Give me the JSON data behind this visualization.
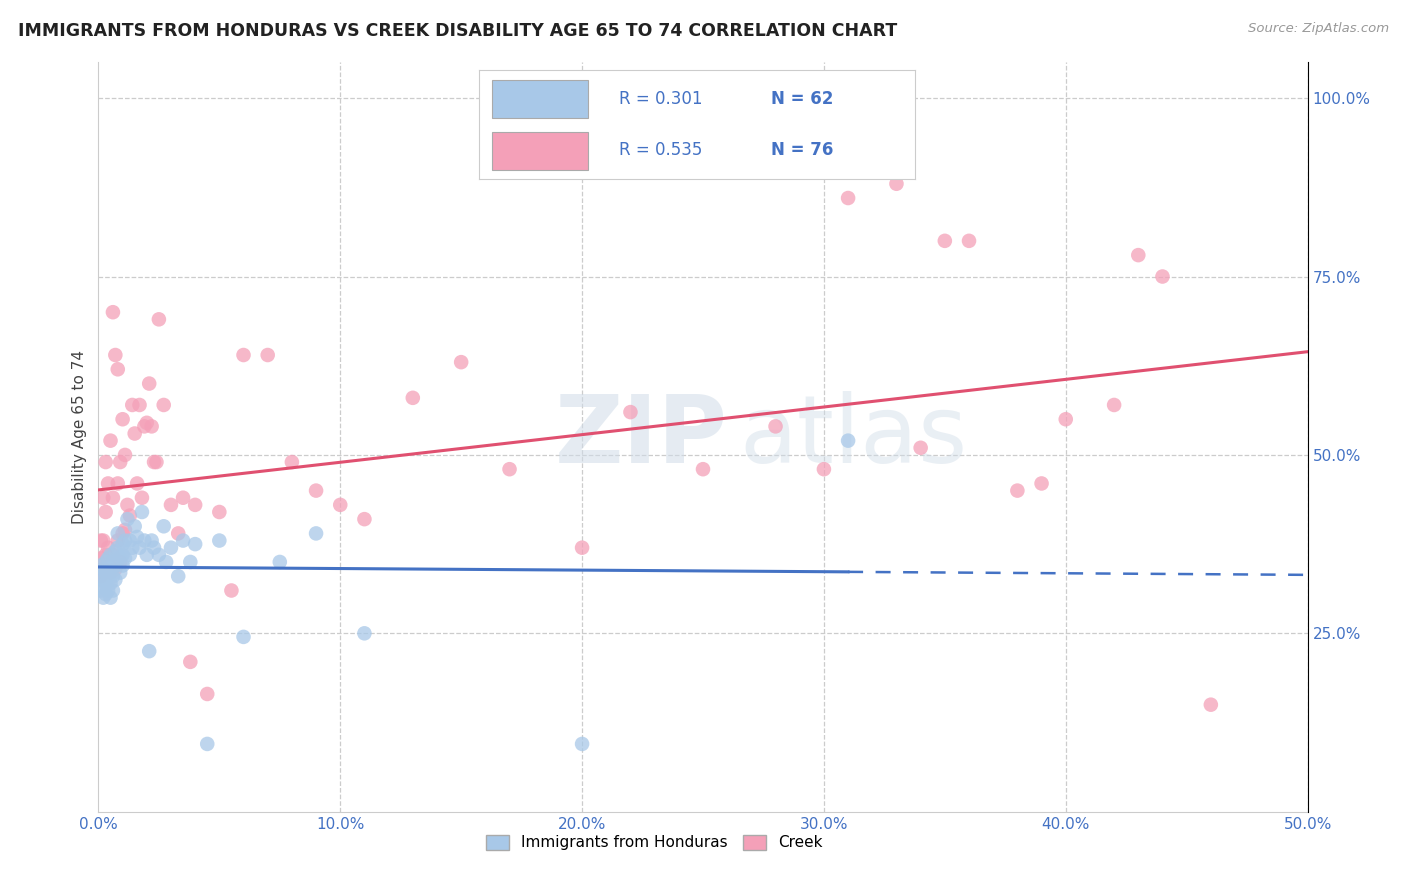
{
  "title": "IMMIGRANTS FROM HONDURAS VS CREEK DISABILITY AGE 65 TO 74 CORRELATION CHART",
  "source_text": "Source: ZipAtlas.com",
  "ylabel": "Disability Age 65 to 74",
  "xmin": 0.0,
  "xmax": 0.5,
  "ymin": 0.0,
  "ymax": 1.05,
  "xtick_vals": [
    0.0,
    0.1,
    0.2,
    0.3,
    0.4,
    0.5
  ],
  "xticklabels": [
    "0.0%",
    "10.0%",
    "20.0%",
    "30.0%",
    "40.0%",
    "50.0%"
  ],
  "ytick_vals": [
    0.25,
    0.5,
    0.75,
    1.0
  ],
  "yticklabels": [
    "25.0%",
    "50.0%",
    "75.0%",
    "100.0%"
  ],
  "r1": "0.301",
  "n1": "62",
  "r2": "0.535",
  "n2": "76",
  "series1_color": "#a8c8e8",
  "series2_color": "#f4a0b8",
  "line1_color": "#4472c4",
  "line2_color": "#e05070",
  "watermark_zip": "ZIP",
  "watermark_atlas": "atlas",
  "legend_label1": "Immigrants from Honduras",
  "legend_label2": "Creek",
  "blue_x": [
    0.001,
    0.001,
    0.001,
    0.002,
    0.002,
    0.002,
    0.002,
    0.003,
    0.003,
    0.003,
    0.003,
    0.004,
    0.004,
    0.004,
    0.005,
    0.005,
    0.005,
    0.005,
    0.006,
    0.006,
    0.006,
    0.007,
    0.007,
    0.007,
    0.008,
    0.008,
    0.009,
    0.009,
    0.01,
    0.01,
    0.01,
    0.011,
    0.011,
    0.012,
    0.013,
    0.013,
    0.014,
    0.015,
    0.016,
    0.017,
    0.018,
    0.019,
    0.02,
    0.021,
    0.022,
    0.023,
    0.025,
    0.027,
    0.028,
    0.03,
    0.033,
    0.035,
    0.038,
    0.04,
    0.045,
    0.05,
    0.06,
    0.075,
    0.09,
    0.11,
    0.2,
    0.31
  ],
  "blue_y": [
    0.31,
    0.33,
    0.345,
    0.3,
    0.315,
    0.325,
    0.34,
    0.305,
    0.32,
    0.335,
    0.35,
    0.31,
    0.33,
    0.355,
    0.3,
    0.32,
    0.34,
    0.36,
    0.31,
    0.33,
    0.35,
    0.325,
    0.345,
    0.365,
    0.37,
    0.39,
    0.335,
    0.355,
    0.345,
    0.36,
    0.375,
    0.355,
    0.38,
    0.41,
    0.36,
    0.38,
    0.37,
    0.4,
    0.385,
    0.37,
    0.42,
    0.38,
    0.36,
    0.225,
    0.38,
    0.37,
    0.36,
    0.4,
    0.35,
    0.37,
    0.33,
    0.38,
    0.35,
    0.375,
    0.095,
    0.38,
    0.245,
    0.35,
    0.39,
    0.25,
    0.095,
    0.52
  ],
  "pink_x": [
    0.001,
    0.001,
    0.001,
    0.002,
    0.002,
    0.002,
    0.003,
    0.003,
    0.003,
    0.004,
    0.004,
    0.005,
    0.005,
    0.006,
    0.006,
    0.006,
    0.007,
    0.007,
    0.008,
    0.008,
    0.008,
    0.009,
    0.009,
    0.01,
    0.01,
    0.011,
    0.011,
    0.012,
    0.013,
    0.014,
    0.015,
    0.016,
    0.017,
    0.018,
    0.019,
    0.02,
    0.021,
    0.022,
    0.023,
    0.024,
    0.025,
    0.027,
    0.03,
    0.033,
    0.035,
    0.038,
    0.04,
    0.045,
    0.05,
    0.055,
    0.06,
    0.07,
    0.08,
    0.09,
    0.1,
    0.11,
    0.13,
    0.15,
    0.17,
    0.2,
    0.22,
    0.25,
    0.28,
    0.31,
    0.34,
    0.36,
    0.38,
    0.4,
    0.42,
    0.44,
    0.46,
    0.3,
    0.33,
    0.35,
    0.39,
    0.43
  ],
  "pink_y": [
    0.33,
    0.355,
    0.38,
    0.34,
    0.38,
    0.44,
    0.36,
    0.42,
    0.49,
    0.37,
    0.46,
    0.335,
    0.52,
    0.36,
    0.44,
    0.7,
    0.34,
    0.64,
    0.38,
    0.46,
    0.62,
    0.35,
    0.49,
    0.39,
    0.55,
    0.395,
    0.5,
    0.43,
    0.415,
    0.57,
    0.53,
    0.46,
    0.57,
    0.44,
    0.54,
    0.545,
    0.6,
    0.54,
    0.49,
    0.49,
    0.69,
    0.57,
    0.43,
    0.39,
    0.44,
    0.21,
    0.43,
    0.165,
    0.42,
    0.31,
    0.64,
    0.64,
    0.49,
    0.45,
    0.43,
    0.41,
    0.58,
    0.63,
    0.48,
    0.37,
    0.56,
    0.48,
    0.54,
    0.86,
    0.51,
    0.8,
    0.45,
    0.55,
    0.57,
    0.75,
    0.15,
    0.48,
    0.88,
    0.8,
    0.46,
    0.78
  ]
}
